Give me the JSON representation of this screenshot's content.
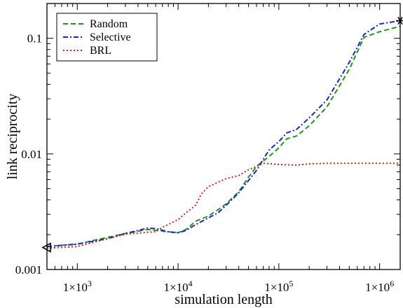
{
  "chart_data": {
    "type": "line",
    "xscale": "log",
    "yscale": "log",
    "xlim": [
      500,
      1600000
    ],
    "ylim": [
      0.001,
      0.2
    ],
    "xlabel": "simulation length",
    "ylabel": "link reciprocity",
    "xticks": [
      {
        "value": 1000,
        "mant": "1×10",
        "exp": "3"
      },
      {
        "value": 10000,
        "mant": "1×10",
        "exp": "4"
      },
      {
        "value": 100000,
        "mant": "1×10",
        "exp": "5"
      },
      {
        "value": 1000000,
        "mant": "1×10",
        "exp": "6"
      }
    ],
    "yticks": [
      {
        "value": 0.001,
        "label": "0.001"
      },
      {
        "value": 0.01,
        "label": "0.01"
      },
      {
        "value": 0.1,
        "label": "0.1"
      }
    ],
    "grid": false,
    "legend_position": "top-left",
    "series": [
      {
        "name": "Random",
        "color": "#1a9a1a",
        "dash": "dashed",
        "x": [
          500,
          1000,
          2000,
          3000,
          5000,
          6000,
          8000,
          10000,
          12000,
          15000,
          20000,
          25000,
          30000,
          40000,
          50000,
          60000,
          80000,
          100000,
          120000,
          150000,
          200000,
          300000,
          500000,
          700000,
          1000000,
          1600000
        ],
        "y": [
          0.00158,
          0.00166,
          0.0019,
          0.00205,
          0.00222,
          0.00218,
          0.00212,
          0.00208,
          0.00222,
          0.00262,
          0.0029,
          0.0033,
          0.0037,
          0.0047,
          0.0063,
          0.0078,
          0.0095,
          0.0113,
          0.0135,
          0.0143,
          0.0175,
          0.0255,
          0.054,
          0.102,
          0.114,
          0.127
        ]
      },
      {
        "name": "Selective",
        "color": "#1f1fd0",
        "dash": "dashdot",
        "x": [
          500,
          1000,
          2000,
          3000,
          5000,
          6000,
          8000,
          10000,
          12000,
          15000,
          20000,
          25000,
          30000,
          40000,
          50000,
          60000,
          80000,
          100000,
          120000,
          150000,
          200000,
          300000,
          500000,
          700000,
          1000000,
          1600000
        ],
        "y": [
          0.00158,
          0.00166,
          0.00185,
          0.00205,
          0.00228,
          0.00226,
          0.00212,
          0.00208,
          0.00218,
          0.00245,
          0.0028,
          0.0031,
          0.0036,
          0.0046,
          0.0059,
          0.0072,
          0.0108,
          0.0128,
          0.0152,
          0.0163,
          0.0205,
          0.0293,
          0.062,
          0.108,
          0.133,
          0.142
        ]
      },
      {
        "name": "BRL",
        "color": "#e01a1a",
        "dash": "dotted",
        "x": [
          500,
          1000,
          2000,
          3000,
          5000,
          6000,
          7000,
          8000,
          10000,
          12000,
          15000,
          17000,
          20000,
          25000,
          30000,
          40000,
          50000,
          60000,
          70000,
          100000,
          150000,
          200000,
          300000,
          500000,
          1000000,
          1600000
        ],
        "y": [
          0.00153,
          0.00158,
          0.00185,
          0.00202,
          0.0021,
          0.00212,
          0.00232,
          0.00245,
          0.0027,
          0.0031,
          0.0036,
          0.0045,
          0.0052,
          0.0057,
          0.0061,
          0.0065,
          0.0073,
          0.0078,
          0.0083,
          0.0081,
          0.008,
          0.0082,
          0.0083,
          0.0083,
          0.0083,
          0.0083
        ]
      }
    ],
    "markers": [
      {
        "shape": "triangle-left",
        "x": 500,
        "y": 0.00155
      },
      {
        "shape": "asterisk",
        "x": 1600000,
        "y": 0.142
      }
    ]
  }
}
